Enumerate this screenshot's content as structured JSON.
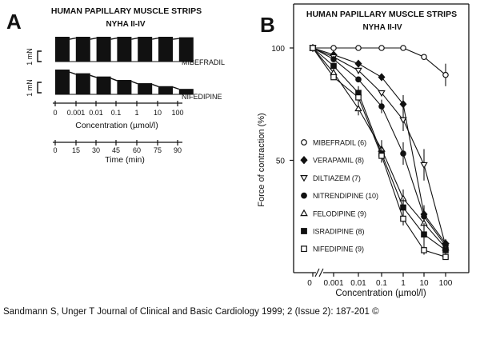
{
  "panel_a": {
    "letter": "A",
    "title": "HUMAN PAPILLARY MUSCLE STRIPS",
    "subtitle": "NYHA II-IV",
    "scale_bar_label": "1 mN",
    "traces": [
      {
        "label": "MIBEFRADIL",
        "relative_heights": [
          1.0,
          1.0,
          1.0,
          1.0,
          1.0,
          1.0,
          0.98
        ]
      },
      {
        "label": "NIFEDIPINE",
        "relative_heights": [
          1.0,
          0.85,
          0.72,
          0.58,
          0.45,
          0.33,
          0.22
        ]
      }
    ],
    "concentration_ticks": [
      "0",
      "0.001",
      "0.01",
      "0.1",
      "1",
      "10",
      "100"
    ],
    "concentration_label": "Concentration (µmol/l)",
    "time_ticks": [
      "0",
      "15",
      "30",
      "45",
      "60",
      "75",
      "90"
    ],
    "time_label": "Time (min)"
  },
  "chart_data": {
    "type": "line",
    "letter": "B",
    "title": "HUMAN PAPILLARY MUSCLE STRIPS",
    "subtitle": "NYHA II-IV",
    "xlabel": "Concentration (µmol/l)",
    "ylabel": "Force of contraction (%)",
    "x_scale": "log",
    "x_tick_labels": [
      "0",
      "0.001",
      "0.01",
      "0.1",
      "1",
      "10",
      "100"
    ],
    "x": [
      0,
      0.001,
      0.01,
      0.1,
      1,
      10,
      100
    ],
    "y_ticks": [
      50,
      100
    ],
    "ylim": [
      0,
      105
    ],
    "legend_position": "left",
    "series": [
      {
        "name": "MIBEFRADIL (6)",
        "marker": "circle-open",
        "values": [
          100,
          100,
          100,
          100,
          100,
          96,
          88
        ],
        "err": [
          0,
          0,
          0,
          0,
          0,
          0,
          5
        ]
      },
      {
        "name": "VERAPAMIL (8)",
        "marker": "diamond-filled",
        "values": [
          100,
          97,
          93,
          87,
          75,
          26,
          13
        ],
        "err": [
          0,
          0,
          0,
          0,
          4,
          4,
          2
        ]
      },
      {
        "name": "DILTIAZEM (7)",
        "marker": "triangle-down-open",
        "values": [
          100,
          96,
          90,
          80,
          68,
          48,
          12
        ],
        "err": [
          0,
          0,
          0,
          0,
          5,
          7,
          2
        ]
      },
      {
        "name": "NITRENDIPINE (10)",
        "marker": "circle-filled",
        "values": [
          100,
          95,
          86,
          74,
          53,
          25,
          12
        ],
        "err": [
          0,
          0,
          0,
          3,
          5,
          4,
          2
        ]
      },
      {
        "name": "FELODIPINE (9)",
        "marker": "triangle-up-open",
        "values": [
          100,
          89,
          73,
          55,
          33,
          22,
          11
        ],
        "err": [
          0,
          0,
          3,
          4,
          4,
          3,
          2
        ]
      },
      {
        "name": "ISRADIPINE (8)",
        "marker": "square-filled",
        "values": [
          100,
          92,
          80,
          53,
          29,
          17,
          10
        ],
        "err": [
          0,
          0,
          3,
          4,
          4,
          5,
          2
        ]
      },
      {
        "name": "NIFEDIPINE (9)",
        "marker": "square-open",
        "values": [
          100,
          87,
          78,
          52,
          24,
          10,
          7
        ],
        "err": [
          0,
          0,
          2,
          3,
          3,
          2,
          1
        ]
      }
    ]
  },
  "caption": "Sandmann S, Unger T Journal of Clinical and Basic Cardiology 1999; 2 (Issue 2): 187-201 ©"
}
